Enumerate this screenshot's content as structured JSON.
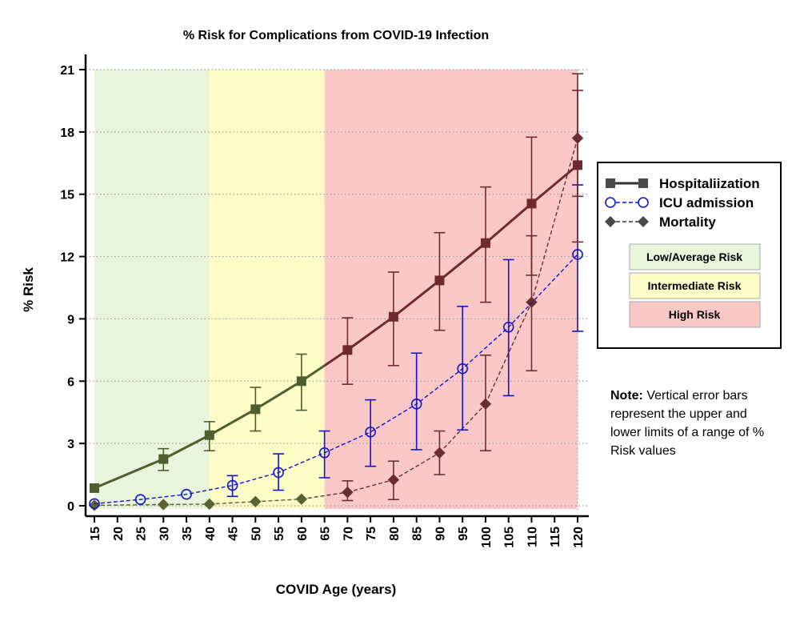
{
  "chart_data": {
    "type": "line",
    "title": "% Risk for Complications from COVID-19 Infection",
    "xlabel": "COVID Age (years)",
    "ylabel": "% Risk",
    "xlim": [
      15,
      120
    ],
    "ylim": [
      0,
      21
    ],
    "x_ticks": [
      15,
      20,
      25,
      30,
      35,
      40,
      45,
      50,
      55,
      60,
      65,
      70,
      75,
      80,
      85,
      90,
      95,
      100,
      105,
      110,
      115,
      120
    ],
    "y_ticks": [
      0,
      3,
      6,
      9,
      12,
      15,
      18,
      21
    ],
    "grid": "horizontal dotted",
    "zones": [
      {
        "name": "Low/Average Risk",
        "x_start": 15,
        "x_end": 40,
        "color": "#e8f4dc"
      },
      {
        "name": "Intermediate Risk",
        "x_start": 40,
        "x_end": 65,
        "color": "#fdfdc8"
      },
      {
        "name": "High Risk",
        "x_start": 65,
        "x_end": 120,
        "color": "#fbc8c8"
      }
    ],
    "series": [
      {
        "name": "Hospitaliization",
        "marker": "square",
        "line": "solid",
        "x": [
          15,
          30,
          40,
          50,
          60,
          70,
          80,
          90,
          100,
          110,
          120
        ],
        "y": [
          0.85,
          2.25,
          3.4,
          4.65,
          6.0,
          7.5,
          9.1,
          10.85,
          12.65,
          14.55,
          16.4
        ],
        "err_low": [
          null,
          1.7,
          2.65,
          3.6,
          4.6,
          5.85,
          6.75,
          8.45,
          9.8,
          11.1,
          12.7
        ],
        "err_high": [
          null,
          2.75,
          4.05,
          5.7,
          7.3,
          9.05,
          11.25,
          13.15,
          15.35,
          17.75,
          20.0
        ]
      },
      {
        "name": "ICU admission",
        "marker": "circle",
        "line": "dashed",
        "x": [
          15,
          25,
          35,
          45,
          55,
          65,
          75,
          85,
          95,
          105,
          120
        ],
        "y": [
          0.1,
          0.3,
          0.55,
          0.98,
          1.6,
          2.55,
          3.55,
          4.9,
          6.6,
          8.6,
          12.1
        ],
        "err_low": [
          null,
          null,
          null,
          0.45,
          0.75,
          1.35,
          1.9,
          2.7,
          3.65,
          5.3,
          8.4
        ],
        "err_high": [
          null,
          null,
          null,
          1.45,
          2.5,
          3.6,
          5.1,
          7.35,
          9.6,
          11.85,
          15.45
        ]
      },
      {
        "name": "Mortality",
        "marker": "diamond",
        "line": "dashed",
        "x": [
          15,
          30,
          40,
          50,
          60,
          70,
          80,
          90,
          100,
          110,
          120
        ],
        "y": [
          0.02,
          0.06,
          0.08,
          0.2,
          0.32,
          0.65,
          1.25,
          2.55,
          4.9,
          9.8,
          17.7
        ],
        "err_low": [
          null,
          null,
          null,
          null,
          null,
          0.25,
          0.3,
          1.5,
          2.65,
          6.5,
          14.9
        ],
        "err_high": [
          null,
          null,
          null,
          null,
          null,
          1.2,
          2.15,
          3.6,
          7.25,
          13.0,
          20.8
        ]
      }
    ]
  },
  "note": {
    "label": "Note:",
    "text": " Vertical error bars represent the upper and lower limits of a range of % Risk values"
  },
  "colors": {
    "hosp_green": "#4e5e2e",
    "hosp_red": "#6e2a2e",
    "hosp_gray": "#4a4a4a",
    "icu_blue": "#1414c8",
    "mort_green": "#5a6232",
    "mort_red": "#6a2e32"
  }
}
